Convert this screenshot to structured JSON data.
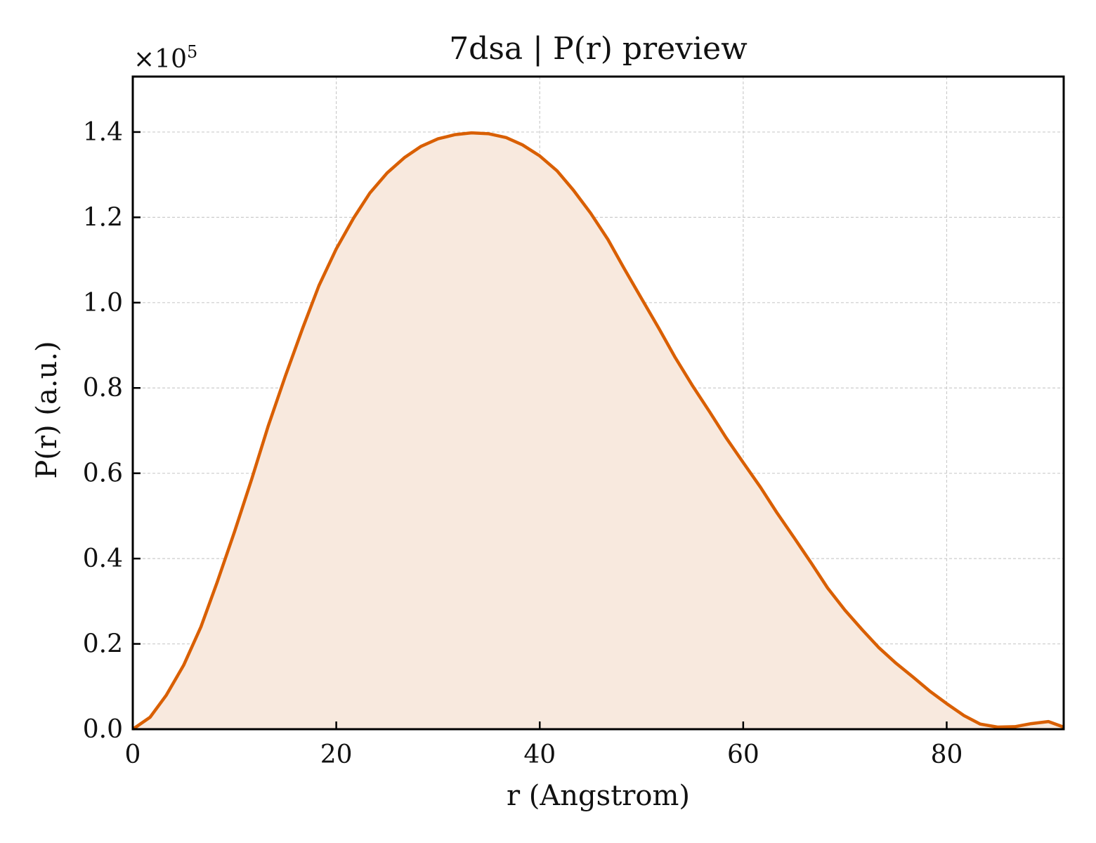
{
  "chart_data": {
    "type": "area",
    "title": "7dsa | P(r) preview",
    "xlabel": "r (Angstrom)",
    "ylabel": "P(r) (a.u.)",
    "y_multiplier": {
      "base": "×10",
      "exponent": "5"
    },
    "xlim": [
      0,
      91.5
    ],
    "ylim": [
      0,
      1.53
    ],
    "xticks": [
      0,
      20,
      40,
      60,
      80
    ],
    "xtick_labels": [
      "0",
      "20",
      "40",
      "60",
      "80"
    ],
    "yticks": [
      0,
      0.2,
      0.4,
      0.6,
      0.8,
      1.0,
      1.2,
      1.4
    ],
    "ytick_labels": [
      "0.0",
      "0.2",
      "0.4",
      "0.6",
      "0.8",
      "1.0",
      "1.2",
      "1.4"
    ],
    "grid": true,
    "line_color": "#d95f02",
    "fill_color": "#f8e9de",
    "series": [
      {
        "x": [
          0,
          1.7,
          3.3,
          5.0,
          6.7,
          8.3,
          10.0,
          11.7,
          13.3,
          15.0,
          16.7,
          18.3,
          20.0,
          21.7,
          23.3,
          25.0,
          26.7,
          28.3,
          30.0,
          31.7,
          33.3,
          35.0,
          36.7,
          38.3,
          40.0,
          41.7,
          43.3,
          45.0,
          46.7,
          48.3,
          50.0,
          51.7,
          53.3,
          55.0,
          56.7,
          58.3,
          60.0,
          61.7,
          63.3,
          65.0,
          66.7,
          68.3,
          70.0,
          71.7,
          73.3,
          75.0,
          76.7,
          78.3,
          80.0,
          81.7,
          83.3,
          85.0,
          86.7,
          88.3,
          90.0,
          91.5
        ],
        "y": [
          0.0,
          0.028,
          0.08,
          0.15,
          0.24,
          0.345,
          0.463,
          0.587,
          0.71,
          0.828,
          0.94,
          1.04,
          1.126,
          1.198,
          1.257,
          1.304,
          1.34,
          1.366,
          1.384,
          1.394,
          1.398,
          1.396,
          1.387,
          1.37,
          1.344,
          1.309,
          1.264,
          1.21,
          1.148,
          1.08,
          1.01,
          0.94,
          0.872,
          0.806,
          0.744,
          0.684,
          0.625,
          0.567,
          0.508,
          0.449,
          0.389,
          0.331,
          0.279,
          0.233,
          0.192,
          0.155,
          0.122,
          0.09,
          0.06,
          0.032,
          0.012,
          0.005,
          0.006,
          0.013,
          0.018,
          0.005
        ]
      }
    ]
  }
}
